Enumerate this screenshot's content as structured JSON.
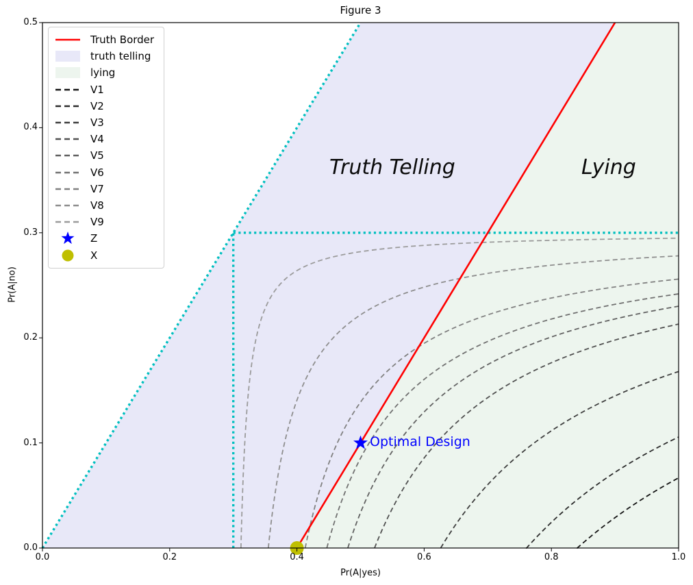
{
  "figure": {
    "title": "Figure 3",
    "xlabel": "Pr(A|yes)",
    "ylabel": "Pr(A|no)"
  },
  "annotations": {
    "truth_telling": "Truth Telling",
    "lying": "Lying",
    "optimal_design": "Optimal Design"
  },
  "legend": {
    "items": [
      {
        "label": "Truth Border",
        "type": "line",
        "color": "#ff0000"
      },
      {
        "label": "truth telling",
        "type": "patch",
        "color": "#e8e8f8"
      },
      {
        "label": "lying",
        "type": "patch",
        "color": "#edf5ee"
      },
      {
        "label": "V1",
        "type": "dashed",
        "color": "#141414"
      },
      {
        "label": "V2",
        "type": "dashed",
        "color": "#2b2b2b"
      },
      {
        "label": "V3",
        "type": "dashed",
        "color": "#3e3e3e"
      },
      {
        "label": "V4",
        "type": "dashed",
        "color": "#505050"
      },
      {
        "label": "V5",
        "type": "dashed",
        "color": "#616161"
      },
      {
        "label": "V6",
        "type": "dashed",
        "color": "#717171"
      },
      {
        "label": "V7",
        "type": "dashed",
        "color": "#808080"
      },
      {
        "label": "V8",
        "type": "dashed",
        "color": "#8e8e8e"
      },
      {
        "label": "V9",
        "type": "dashed",
        "color": "#9b9b9b"
      },
      {
        "label": "Z",
        "type": "star",
        "color": "#0000ff"
      },
      {
        "label": "X",
        "type": "circle",
        "color": "#bfbf00"
      }
    ]
  },
  "chart_data": {
    "type": "line",
    "title": "Figure 3",
    "xlabel": "Pr(A|yes)",
    "ylabel": "Pr(A|no)",
    "xlim": [
      0.0,
      1.0
    ],
    "ylim": [
      0.0,
      0.5
    ],
    "xticks": [
      0.0,
      0.2,
      0.4,
      0.6,
      0.8,
      1.0
    ],
    "xtick_labels": [
      "0.0",
      "0.2",
      "0.4",
      "0.6",
      "0.8",
      "1.0"
    ],
    "yticks": [
      0.0,
      0.1,
      0.2,
      0.3,
      0.4,
      0.5
    ],
    "ytick_labels": [
      "0.0",
      "0.1",
      "0.2",
      "0.3",
      "0.4",
      "0.5"
    ],
    "grid": false,
    "legend_position": "upper left",
    "regions": [
      {
        "label": "truth telling",
        "color": "#e8e8f8",
        "polygon": [
          [
            0.0,
            0.0
          ],
          [
            0.4,
            0.0
          ],
          [
            0.9,
            0.5
          ],
          [
            0.5,
            0.5
          ]
        ]
      },
      {
        "label": "lying",
        "color": "#edf5ee",
        "polygon": [
          [
            0.4,
            0.0
          ],
          [
            1.0,
            0.0
          ],
          [
            1.0,
            0.5
          ],
          [
            0.9,
            0.5
          ]
        ]
      }
    ],
    "truth_border": {
      "label": "Truth Border",
      "color": "#ff0000",
      "equation": "y = x - 0.4",
      "points": [
        [
          0.4,
          0.0
        ],
        [
          0.9,
          0.5
        ]
      ]
    },
    "reference_lines": {
      "color": "#00bfbf",
      "style": "dotted",
      "segments": [
        {
          "name": "diagonal y=x",
          "from": [
            0.0,
            0.0
          ],
          "to": [
            0.5,
            0.5
          ]
        },
        {
          "name": "horizontal y=0.3",
          "from": [
            0.3,
            0.3
          ],
          "to": [
            1.0,
            0.3
          ]
        },
        {
          "name": "vertical x=0.3",
          "from": [
            0.3,
            0.0
          ],
          "to": [
            0.3,
            0.3
          ]
        }
      ]
    },
    "contours": {
      "model": "y = 0.3 - c/(x - a), hyperbolas with horizontal asymptote y=0.3",
      "curves": [
        {
          "label": "V1",
          "color": "#141414",
          "a": 0.284,
          "c": 0.167,
          "x_at_y0": 0.84,
          "y_at_x1": 0.067
        },
        {
          "label": "V2",
          "color": "#2b2b2b",
          "a": 0.321,
          "c": 0.132,
          "x_at_y0": 0.76,
          "y_at_x1": 0.106
        },
        {
          "label": "V3",
          "color": "#3e3e3e",
          "a": 0.332,
          "c": 0.0882,
          "x_at_y0": 0.626,
          "y_at_x1": 0.168
        },
        {
          "label": "V4",
          "color": "#505050",
          "a": 0.327,
          "c": 0.0585,
          "x_at_y0": 0.522,
          "y_at_x1": 0.213
        },
        {
          "label": "V5",
          "color": "#616161",
          "a": 0.322,
          "c": 0.0474,
          "x_at_y0": 0.48,
          "y_at_x1": 0.23
        },
        {
          "label": "V6",
          "color": "#717171",
          "a": 0.314,
          "c": 0.0399,
          "x_at_y0": 0.447,
          "y_at_x1": 0.242
        },
        {
          "label": "V7",
          "color": "#808080",
          "a": 0.312,
          "c": 0.0303,
          "x_at_y0": 0.413,
          "y_at_x1": 0.256
        },
        {
          "label": "V8",
          "color": "#8e8e8e",
          "a": 0.304,
          "c": 0.0153,
          "x_at_y0": 0.355,
          "y_at_x1": 0.278
        },
        {
          "label": "V9",
          "color": "#9b9b9b",
          "a": 0.3,
          "c": 0.0036,
          "x_at_y0": 0.312,
          "y_at_x1": 0.295
        }
      ]
    },
    "markers": [
      {
        "label": "Z",
        "type": "star",
        "color": "#0000ff",
        "x": 0.5,
        "y": 0.1,
        "annotation": "Optimal Design"
      },
      {
        "label": "X",
        "type": "circle",
        "color": "#bfbf00",
        "x": 0.4,
        "y": 0.0
      }
    ]
  }
}
